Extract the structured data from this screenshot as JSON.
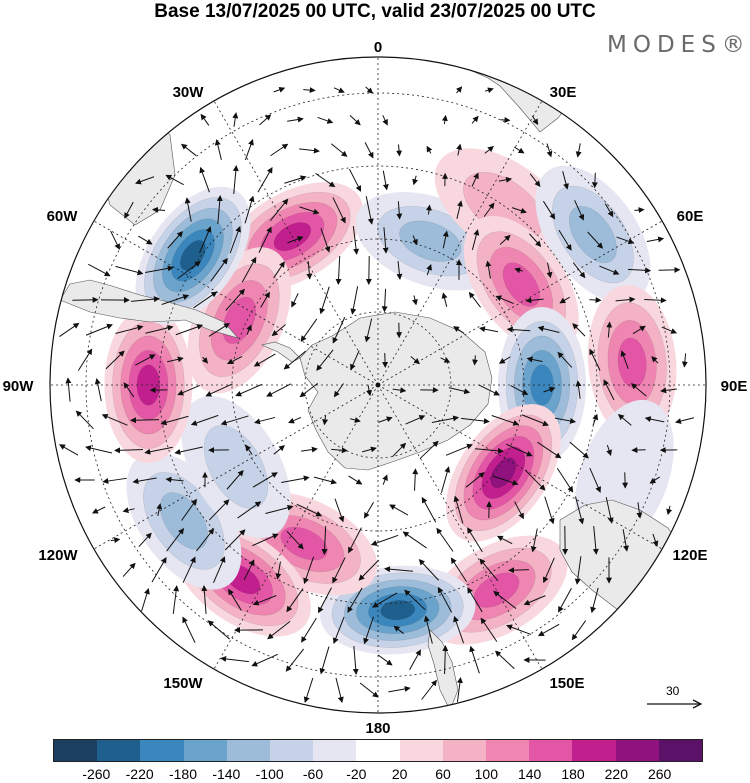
{
  "title": "Base 13/07/2025 00 UTC, valid 23/07/2025 00 UTC",
  "brand": "MODES®",
  "lon_labels": {
    "l0": "0",
    "l30e": "30E",
    "l60e": "60E",
    "l90e": "90E",
    "l120e": "120E",
    "l150e": "150E",
    "l180": "180",
    "l150w": "150W",
    "l120w": "120W",
    "l90w": "90W",
    "l60w": "60W",
    "l30w": "30W"
  },
  "reference_vector": "30",
  "colorbar": {
    "colors": [
      "#1b3f5e",
      "#1f5f8e",
      "#3a86bd",
      "#6aa3cb",
      "#9cbcd9",
      "#c6d2e7",
      "#e6e6f2",
      "#ffffff",
      "#f8d8de",
      "#f3b3c4",
      "#ee86b1",
      "#e356a6",
      "#c21f8e",
      "#8f127f",
      "#5b1168"
    ],
    "ticks": [
      "-260",
      "-220",
      "-180",
      "-140",
      "-100",
      "-60",
      "-20",
      "20",
      "60",
      "100",
      "140",
      "180",
      "220",
      "260"
    ]
  },
  "anomalies": [
    {
      "lon": 330,
      "colat": 47,
      "value": 180
    },
    {
      "lon": 20,
      "colat": 42,
      "value": -100
    },
    {
      "lon": 35,
      "colat": 60,
      "value": 60
    },
    {
      "lon": 55,
      "colat": 72,
      "value": -100
    },
    {
      "lon": 55,
      "colat": 48,
      "value": 160
    },
    {
      "lon": 85,
      "colat": 70,
      "value": 150
    },
    {
      "lon": 90,
      "colat": 45,
      "value": -200
    },
    {
      "lon": 125,
      "colat": 42,
      "value": 220
    },
    {
      "lon": 110,
      "colat": 72,
      "value": -40
    },
    {
      "lon": 150,
      "colat": 65,
      "value": 170
    },
    {
      "lon": 175,
      "colat": 62,
      "value": -240
    },
    {
      "lon": 205,
      "colat": 48,
      "value": 170
    },
    {
      "lon": 215,
      "colat": 65,
      "value": 200
    },
    {
      "lon": 235,
      "colat": 65,
      "value": -100
    },
    {
      "lon": 240,
      "colat": 45,
      "value": -80
    },
    {
      "lon": 270,
      "colat": 63,
      "value": 180
    },
    {
      "lon": 295,
      "colat": 42,
      "value": 170
    },
    {
      "lon": 305,
      "colat": 62,
      "value": -220
    }
  ]
}
